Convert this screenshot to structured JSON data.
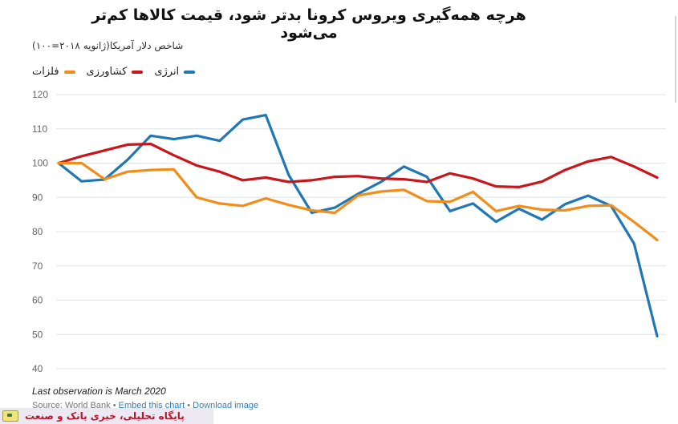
{
  "chart_data": {
    "type": "line",
    "title": "هرچه همه‌گیری ویروس کرونا بدتر شود، قیمت کالاها کم‌تر می‌شود",
    "subtitle": "شاخص دلار آمریکا(ژانویه ۲۰۱۸=۱۰۰)",
    "ylim": [
      40,
      120
    ],
    "yticks": [
      120,
      110,
      100,
      90,
      80,
      70,
      60,
      50,
      40
    ],
    "grid": true,
    "legend_position": "top-left",
    "x": [
      0,
      1,
      2,
      3,
      4,
      5,
      6,
      7,
      8,
      9,
      10,
      11,
      12,
      13,
      14,
      15,
      16,
      17,
      18,
      19,
      20,
      21,
      22,
      23,
      24,
      25,
      26
    ],
    "series": [
      {
        "name": "انرژی",
        "color": "#1f77b4",
        "values": [
          100.0,
          94.7,
          95.2,
          101.0,
          108.0,
          107.0,
          108.0,
          106.5,
          112.7,
          114.0,
          96.5,
          85.5,
          87.0,
          91.0,
          94.5,
          99.0,
          96.0,
          86.0,
          88.2,
          82.9,
          86.7,
          83.5,
          88.0,
          90.5,
          87.5,
          76.5,
          49.5
        ]
      },
      {
        "name": "کشاورزی",
        "color": "#c8161d",
        "values": [
          100.0,
          102.0,
          103.7,
          105.4,
          105.6,
          102.3,
          99.3,
          97.5,
          95.0,
          95.8,
          94.5,
          95.0,
          96.0,
          96.2,
          95.5,
          95.3,
          94.5,
          97.0,
          95.5,
          93.2,
          93.0,
          94.6,
          98.0,
          100.5,
          101.8,
          99.0,
          95.8
        ]
      },
      {
        "name": "فلزات",
        "color": "#f28c1a",
        "values": [
          100.0,
          100.0,
          95.3,
          97.5,
          98.0,
          98.2,
          90.0,
          88.2,
          87.5,
          89.7,
          87.8,
          86.2,
          85.5,
          90.5,
          91.7,
          92.2,
          88.9,
          88.7,
          91.6,
          86.0,
          87.5,
          86.4,
          86.2,
          87.5,
          87.7,
          82.8,
          77.6
        ]
      }
    ]
  },
  "footnote": "Last observation is March 2020",
  "source": {
    "prefix": "Source: World Bank",
    "sep1": "•",
    "embed": "Embed this chart",
    "sep2": "•",
    "download": "Download image"
  },
  "brand": {
    "text": "پایگاه تحلیلی، خبری بانک و صنعت",
    "logo_icon": "bank-logo-icon"
  },
  "colors": {
    "grid": "#dfe3e6",
    "axis_label": "#666666"
  }
}
